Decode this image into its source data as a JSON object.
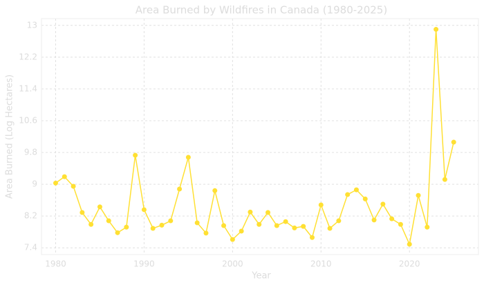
{
  "chart_data": {
    "type": "line",
    "title": "Area Burned by Wildfires in Canada (1980-2025)",
    "x_label": "Year",
    "y_label": "Area Burned (Log Hectares)",
    "x": [
      1980,
      1981,
      1982,
      1983,
      1984,
      1985,
      1986,
      1987,
      1988,
      1989,
      1990,
      1991,
      1992,
      1993,
      1994,
      1995,
      1996,
      1997,
      1998,
      1999,
      2000,
      2001,
      2002,
      2003,
      2004,
      2005,
      2006,
      2007,
      2008,
      2009,
      2010,
      2011,
      2012,
      2013,
      2014,
      2015,
      2016,
      2017,
      2018,
      2019,
      2020,
      2021,
      2022,
      2023,
      2024,
      2025
    ],
    "series": [
      {
        "name": "Area Burned",
        "color": "#ffe033",
        "values": [
          9.03,
          9.19,
          8.95,
          8.29,
          7.99,
          8.43,
          8.08,
          7.78,
          7.92,
          9.73,
          8.36,
          7.89,
          7.97,
          8.08,
          8.88,
          9.68,
          8.03,
          7.77,
          8.84,
          7.96,
          7.61,
          7.82,
          8.3,
          7.99,
          8.29,
          7.96,
          8.06,
          7.9,
          7.94,
          7.66,
          8.48,
          7.89,
          8.08,
          8.74,
          8.86,
          8.63,
          8.1,
          8.5,
          8.13,
          7.99,
          7.49,
          8.72,
          7.92,
          12.9,
          9.12,
          10.06
        ]
      }
    ],
    "xlim": [
      1978.4,
      2027.8
    ],
    "xticks": [
      1980,
      1990,
      2000,
      2010,
      2020
    ],
    "ylim": [
      7.23,
      13.17
    ],
    "yticks": [
      7.4,
      8.2,
      9.0,
      9.8,
      10.6,
      11.4,
      12.2,
      13.0
    ],
    "grid": true
  }
}
